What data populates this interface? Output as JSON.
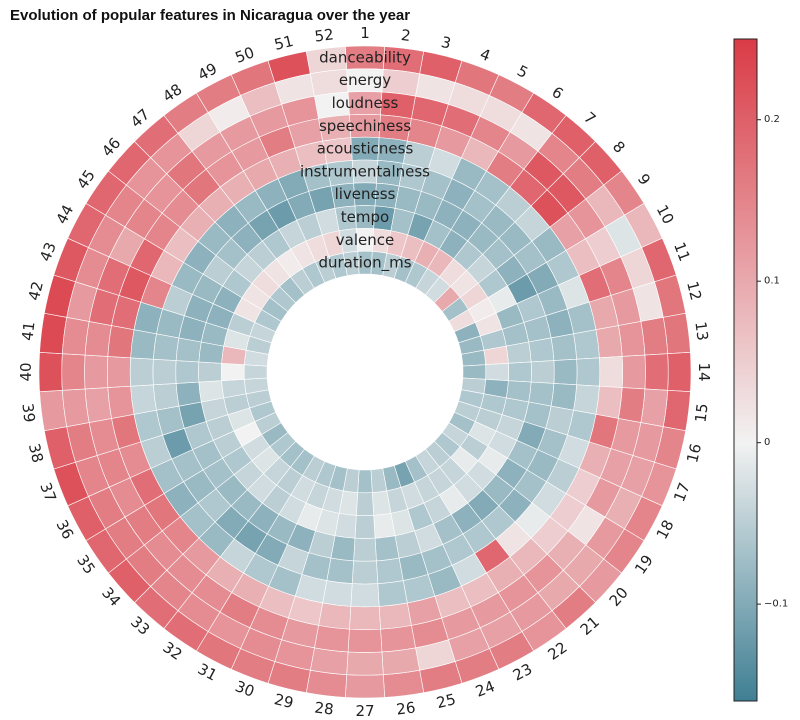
{
  "chart_data": {
    "type": "heatmap",
    "layout": "radial",
    "title": "Evolution of popular features in Nicaragua over the year",
    "weeks": [
      "1",
      "2",
      "3",
      "4",
      "5",
      "6",
      "7",
      "8",
      "9",
      "10",
      "11",
      "12",
      "13",
      "14",
      "15",
      "16",
      "17",
      "18",
      "19",
      "20",
      "21",
      "22",
      "23",
      "24",
      "25",
      "26",
      "27",
      "28",
      "29",
      "30",
      "31",
      "32",
      "33",
      "34",
      "35",
      "36",
      "37",
      "38",
      "39",
      "40",
      "41",
      "42",
      "43",
      "44",
      "45",
      "46",
      "47",
      "48",
      "49",
      "50",
      "51",
      "52"
    ],
    "features": [
      "danceability",
      "energy",
      "loudness",
      "speechiness",
      "acousticness",
      "instrumentalness",
      "liveness",
      "tempo",
      "valence",
      "duration_ms"
    ],
    "colorbar": {
      "range": [
        -0.16,
        0.25
      ],
      "ticks": [
        {
          "value": -0.1,
          "label": "−0.1"
        },
        {
          "value": 0,
          "label": "0"
        },
        {
          "value": 0.1,
          "label": "0.1"
        },
        {
          "value": 0.2,
          "label": "0.2"
        }
      ],
      "colors": {
        "low": "#3f7f93",
        "mid": "#f2f2f2",
        "high": "#da3b46"
      }
    },
    "values": {
      "danceability": [
        0.16,
        0.18,
        0.2,
        0.17,
        0.16,
        0.19,
        0.2,
        0.2,
        0.15,
        0.08,
        0.19,
        0.17,
        0.17,
        0.2,
        0.19,
        0.15,
        0.13,
        0.15,
        0.15,
        0.12,
        0.16,
        0.13,
        0.16,
        0.16,
        0.16,
        0.14,
        0.12,
        0.14,
        0.16,
        0.16,
        0.17,
        0.18,
        0.18,
        0.2,
        0.19,
        0.2,
        0.22,
        0.2,
        0.12,
        0.22,
        0.23,
        0.23,
        0.21,
        0.19,
        0.19,
        0.19,
        0.18,
        0.16,
        0.16,
        0.17,
        0.22,
        0.04
      ],
      "energy": [
        0.0,
        0.05,
        0.02,
        0.03,
        0.03,
        0.02,
        0.15,
        0.16,
        0.08,
        -0.02,
        0.04,
        0.02,
        0.16,
        0.18,
        0.11,
        0.12,
        0.11,
        0.09,
        0.12,
        0.1,
        0.1,
        0.12,
        0.11,
        0.11,
        0.04,
        0.1,
        0.1,
        0.11,
        0.13,
        0.14,
        0.13,
        0.14,
        0.15,
        0.16,
        0.16,
        0.16,
        0.15,
        0.16,
        0.12,
        0.15,
        0.14,
        0.12,
        0.14,
        0.14,
        0.15,
        0.13,
        0.13,
        0.04,
        0.01,
        0.07,
        0.02,
        0.03
      ],
      "loudness": [
        0.11,
        0.2,
        0.19,
        0.18,
        0.15,
        0.12,
        0.21,
        0.21,
        0.13,
        0.05,
        0.15,
        0.12,
        0.13,
        0.12,
        0.16,
        0.12,
        0.11,
        0.12,
        0.02,
        0.09,
        0.13,
        0.13,
        0.12,
        0.12,
        0.14,
        0.13,
        0.13,
        0.13,
        0.12,
        0.14,
        0.16,
        0.14,
        0.14,
        0.14,
        0.16,
        0.14,
        0.15,
        0.14,
        0.11,
        0.12,
        0.14,
        0.18,
        0.18,
        0.1,
        0.15,
        0.13,
        0.17,
        0.12,
        0.12,
        0.12,
        0.13,
        0.0
      ],
      "speechiness": [
        0.12,
        0.16,
        0.15,
        0.12,
        0.08,
        0.16,
        0.19,
        0.22,
        0.11,
        0.07,
        0.18,
        0.1,
        0.1,
        0.03,
        0.07,
        0.17,
        0.09,
        0.05,
        0.05,
        0.05,
        0.08,
        0.09,
        0.07,
        0.07,
        0.11,
        0.08,
        0.08,
        0.08,
        0.06,
        0.07,
        0.09,
        0.09,
        0.12,
        0.15,
        0.17,
        0.18,
        0.14,
        0.17,
        0.13,
        0.12,
        0.17,
        0.18,
        0.21,
        0.19,
        0.15,
        0.14,
        0.17,
        0.13,
        0.12,
        0.16,
        0.11,
        0.09
      ],
      "acousticness": [
        -0.1,
        -0.09,
        -0.05,
        -0.03,
        -0.08,
        -0.07,
        -0.05,
        -0.04,
        -0.08,
        -0.06,
        -0.02,
        -0.07,
        -0.06,
        -0.06,
        -0.04,
        -0.06,
        -0.03,
        -0.05,
        -0.03,
        -0.01,
        0.02,
        0.19,
        -0.03,
        -0.08,
        -0.06,
        -0.06,
        -0.03,
        -0.03,
        -0.03,
        -0.07,
        -0.06,
        -0.04,
        -0.08,
        -0.07,
        -0.09,
        -0.07,
        -0.05,
        -0.06,
        -0.04,
        -0.05,
        -0.08,
        -0.09,
        0.15,
        0.08,
        0.07,
        0.09,
        0.09,
        0.09,
        0.1,
        0.09,
        0.07,
        0.06
      ],
      "instrumentalness": [
        -0.04,
        -0.08,
        -0.06,
        -0.07,
        -0.09,
        -0.07,
        -0.08,
        -0.08,
        -0.07,
        -0.1,
        -0.08,
        -0.09,
        -0.07,
        -0.08,
        -0.08,
        -0.05,
        -0.07,
        -0.08,
        -0.07,
        -0.09,
        -0.06,
        -0.06,
        -0.06,
        -0.07,
        -0.08,
        -0.06,
        -0.05,
        -0.07,
        -0.07,
        -0.04,
        -0.1,
        -0.11,
        -0.1,
        -0.06,
        -0.08,
        -0.07,
        -0.12,
        -0.07,
        -0.05,
        -0.05,
        -0.07,
        -0.08,
        -0.05,
        -0.08,
        -0.09,
        -0.08,
        -0.09,
        -0.08,
        -0.09,
        -0.1,
        -0.07,
        -0.06
      ],
      "liveness": [
        -0.1,
        -0.09,
        -0.08,
        -0.08,
        -0.09,
        -0.09,
        -0.08,
        -0.07,
        -0.09,
        -0.12,
        -0.06,
        -0.07,
        -0.06,
        -0.05,
        -0.07,
        -0.07,
        -0.1,
        -0.07,
        -0.09,
        -0.08,
        -0.1,
        -0.09,
        -0.07,
        -0.03,
        -0.05,
        -0.07,
        -0.05,
        -0.08,
        -0.05,
        -0.09,
        -0.08,
        -0.09,
        -0.08,
        -0.08,
        -0.07,
        -0.07,
        -0.06,
        -0.11,
        -0.09,
        -0.06,
        -0.07,
        -0.09,
        -0.09,
        -0.08,
        -0.05,
        -0.07,
        -0.09,
        -0.11,
        -0.12,
        -0.1,
        -0.11,
        -0.09
      ],
      "tempo": [
        -0.08,
        -0.12,
        -0.07,
        -0.11,
        -0.07,
        -0.09,
        -0.06,
        -0.04,
        -0.06,
        -0.01,
        -0.08,
        -0.07,
        -0.05,
        -0.06,
        -0.07,
        -0.06,
        -0.04,
        -0.03,
        -0.01,
        -0.03,
        -0.03,
        -0.01,
        -0.04,
        -0.06,
        -0.02,
        -0.01,
        -0.05,
        -0.03,
        -0.02,
        -0.01,
        -0.03,
        -0.05,
        -0.03,
        -0.04,
        -0.06,
        -0.05,
        -0.05,
        -0.04,
        -0.02,
        -0.05,
        -0.08,
        -0.08,
        -0.09,
        -0.09,
        -0.06,
        -0.04,
        -0.05,
        -0.06,
        -0.04,
        -0.05,
        -0.03,
        -0.06
      ],
      "valence": [
        0.0,
        0.03,
        0.06,
        0.07,
        0.09,
        0.08,
        0.03,
        0.02,
        0.04,
        0.01,
        0.02,
        -0.06,
        0.04,
        -0.03,
        -0.09,
        -0.06,
        -0.05,
        -0.02,
        -0.05,
        -0.01,
        -0.04,
        -0.04,
        -0.04,
        -0.03,
        -0.04,
        -0.02,
        -0.05,
        -0.02,
        -0.03,
        -0.04,
        -0.03,
        -0.05,
        -0.04,
        -0.02,
        -0.03,
        0.0,
        -0.02,
        -0.05,
        -0.04,
        0.0,
        0.08,
        -0.02,
        -0.05,
        0.02,
        0.02,
        0.03,
        0.02,
        0.01,
        0.02,
        0.03,
        0.04,
        -0.03
      ],
      "duration_ms": [
        -0.07,
        -0.07,
        -0.05,
        -0.07,
        -0.06,
        -0.04,
        -0.03,
        0.1,
        -0.07,
        0.03,
        -0.09,
        -0.08,
        -0.08,
        -0.08,
        -0.05,
        -0.06,
        -0.05,
        -0.07,
        -0.04,
        -0.06,
        -0.05,
        -0.04,
        -0.07,
        -0.11,
        -0.08,
        -0.05,
        -0.07,
        -0.05,
        -0.07,
        -0.06,
        -0.05,
        -0.07,
        -0.07,
        -0.06,
        -0.08,
        -0.05,
        -0.06,
        -0.05,
        -0.04,
        -0.04,
        -0.03,
        -0.05,
        -0.04,
        -0.06,
        -0.07,
        -0.06,
        -0.07,
        -0.05,
        -0.06,
        -0.05,
        -0.06,
        -0.05
      ]
    }
  }
}
